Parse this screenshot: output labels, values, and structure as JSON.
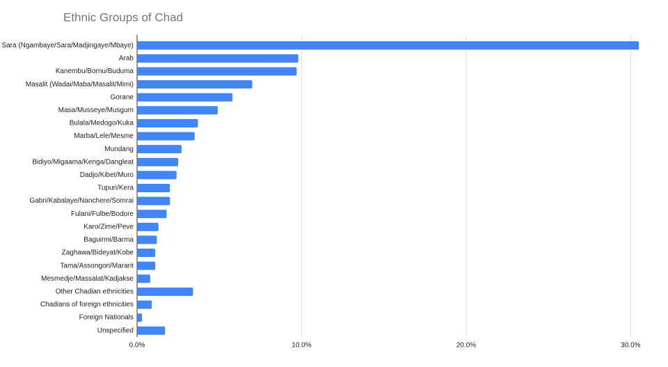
{
  "chart_data": {
    "type": "bar",
    "orientation": "horizontal",
    "title": "Ethnic Groups of Chad",
    "categories": [
      "Sara (Ngambaye/Sara/Madjingaye/Mbaye)",
      "Arab",
      "Kanembu/Bornu/Buduma",
      "Masalit (Wadai/Maba/Masalit/Mimi)",
      "Gorane",
      "Masa/Musseye/Musgum",
      "Bulala/Medogo/Kuka",
      "Marba/Lele/Mesme",
      "Mundang",
      "Bidiyo/Migaama/Kenga/Dangleat",
      "Dadjo/Kibet/Muro",
      "Tupuri/Kera",
      "Gabri/Kabalaye/Nanchere/Somrai",
      "Fulani/Fulbe/Bodore",
      "Karo/Zime/Peve",
      "Baguirmi/Barma",
      "Zaghawa/Bideyat/Kobe",
      "Tama/Assongori/Mararit",
      "Mesmedje/Massalat/Kadjakse",
      "Other Chadian ethnicities",
      "Chadians of foreign ethnicities",
      "Foreign Nationals",
      "Unspecified"
    ],
    "values": [
      30.5,
      9.8,
      9.7,
      7.0,
      5.8,
      4.9,
      3.7,
      3.5,
      2.7,
      2.5,
      2.4,
      2.0,
      2.0,
      1.8,
      1.3,
      1.2,
      1.1,
      1.1,
      0.8,
      3.4,
      0.9,
      0.3,
      1.7
    ],
    "color": "#4285f4",
    "xlim": [
      0,
      31
    ],
    "xticks": [
      {
        "value": 0,
        "label": "0.0%"
      },
      {
        "value": 10,
        "label": "10.0%"
      },
      {
        "value": 20,
        "label": "20.0%"
      },
      {
        "value": 30,
        "label": "30.0%"
      }
    ],
    "grid": true
  }
}
